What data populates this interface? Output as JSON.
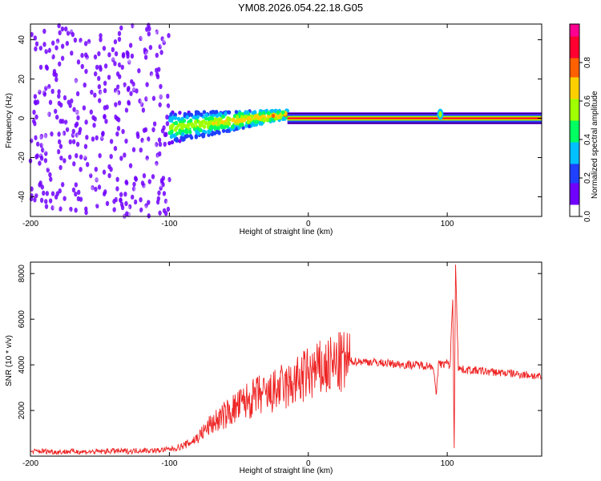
{
  "figure": {
    "title": "YM08.2026.054.22.18.G05"
  },
  "chart_data": [
    {
      "type": "heatmap",
      "title": "",
      "xlabel": "Height of straight line (km)",
      "ylabel": "Frequency (Hz)",
      "xlim": [
        -200,
        168
      ],
      "ylim": [
        -50,
        48
      ],
      "xticks": [
        -200,
        -100,
        0,
        100
      ],
      "yticks": [
        -40,
        -20,
        0,
        20,
        40
      ],
      "colorbar": {
        "label": "Normalized spectral amplitude",
        "range": [
          0,
          1
        ],
        "ticks": [
          0.0,
          0.2,
          0.4,
          0.6,
          0.8
        ],
        "colormap": [
          "#ffffff",
          "#7000ff",
          "#2040ff",
          "#00c0ff",
          "#00ff60",
          "#a0ff00",
          "#ffd000",
          "#ff6000",
          "#ff0030",
          "#ff0090"
        ]
      },
      "features": [
        {
          "region": "scattered noise",
          "x_range": [
            -200,
            -100
          ],
          "freq_range": [
            -50,
            48
          ],
          "amplitude": 0.15
        },
        {
          "region": "emerging signal",
          "x_range": [
            -100,
            -15
          ],
          "freq_center": [
            -5,
            2
          ],
          "amplitude": 0.4
        },
        {
          "region": "steady carrier",
          "x_range": [
            -15,
            168
          ],
          "freq_center": 0,
          "amplitude": 1.0
        },
        {
          "region": "disturbance",
          "x_range": [
            92,
            98
          ],
          "freq_center": 2,
          "amplitude": 0.6
        }
      ]
    },
    {
      "type": "line",
      "title": "",
      "xlabel": "Height of straight line (km)",
      "ylabel": "SNR (10 * v/v)",
      "xlim": [
        -200,
        168
      ],
      "ylim": [
        0,
        8500
      ],
      "xticks": [
        -200,
        -100,
        0,
        100
      ],
      "yticks": [
        2000,
        4000,
        6000,
        8000
      ],
      "series": [
        {
          "color": "#ee2222",
          "x": [
            -200,
            -190,
            -180,
            -170,
            -160,
            -150,
            -140,
            -130,
            -120,
            -110,
            -100,
            -95,
            -90,
            -85,
            -80,
            -75,
            -70,
            -65,
            -60,
            -55,
            -50,
            -45,
            -40,
            -35,
            -30,
            -25,
            -20,
            -15,
            -10,
            -5,
            0,
            5,
            10,
            15,
            20,
            25,
            30,
            35,
            40,
            50,
            60,
            70,
            80,
            90,
            92,
            94,
            96,
            100,
            102,
            104,
            105,
            106,
            108,
            110,
            120,
            130,
            140,
            150,
            160,
            168
          ],
          "y": [
            200,
            220,
            180,
            210,
            190,
            200,
            230,
            210,
            260,
            240,
            300,
            350,
            450,
            600,
            800,
            1100,
            1400,
            1600,
            1800,
            2000,
            2200,
            2400,
            2500,
            2700,
            2600,
            2800,
            3000,
            3000,
            3200,
            3400,
            3600,
            3700,
            3800,
            3900,
            4000,
            4100,
            4150,
            4150,
            4150,
            4100,
            4050,
            4000,
            4000,
            3950,
            2600,
            4200,
            4000,
            4100,
            3900,
            7000,
            200,
            8500,
            3900,
            3800,
            3750,
            3700,
            3650,
            3600,
            3550,
            3450
          ]
        }
      ]
    }
  ]
}
